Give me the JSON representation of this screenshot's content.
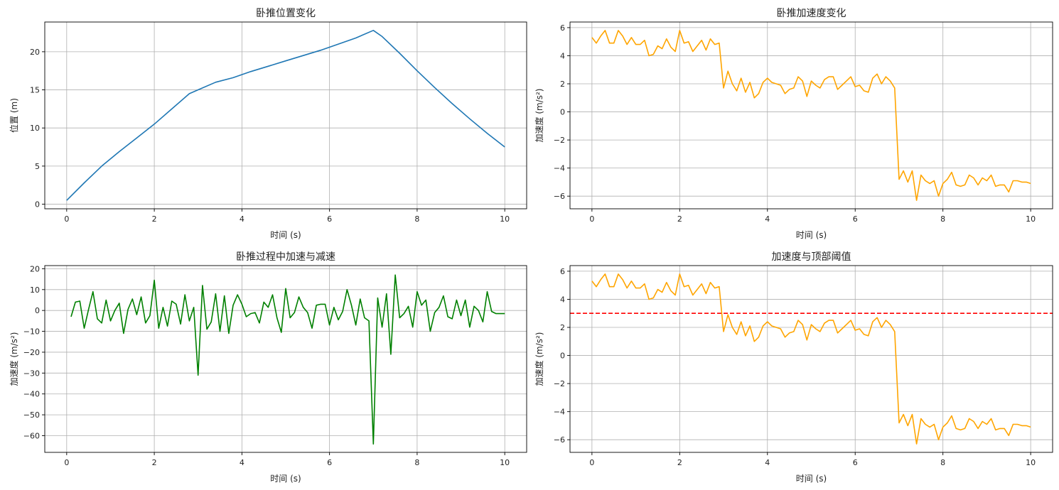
{
  "colors": {
    "position": "#1f77b4",
    "acceleration": "#ffa500",
    "accel_decel": "#008000",
    "threshold": "#ff0000",
    "grid": "#b0b0b0",
    "axes": "#000000"
  },
  "chart_data": [
    {
      "id": "position",
      "type": "line",
      "title": "卧推位置变化",
      "xlabel": "时间 (s)",
      "ylabel": "位置 (m)",
      "xlim": [
        -0.5,
        10.5
      ],
      "ylim": [
        -0.6,
        23.9
      ],
      "xticks": [
        0,
        2,
        4,
        6,
        8,
        10
      ],
      "yticks": [
        0,
        5,
        10,
        15,
        20
      ],
      "grid": true,
      "series": [
        {
          "color_key": "position",
          "x": [
            0,
            0.4,
            0.8,
            1.2,
            1.6,
            2.0,
            2.4,
            2.8,
            3.0,
            3.4,
            3.8,
            4.2,
            4.6,
            5.0,
            5.4,
            5.8,
            6.2,
            6.6,
            7.0,
            7.2,
            7.6,
            8.0,
            8.4,
            8.8,
            9.2,
            9.6,
            10.0
          ],
          "y": [
            0.5,
            2.8,
            5.0,
            6.9,
            8.7,
            10.5,
            12.5,
            14.5,
            15.0,
            16.0,
            16.6,
            17.4,
            18.1,
            18.8,
            19.5,
            20.2,
            21.0,
            21.8,
            22.8,
            22.0,
            19.8,
            17.5,
            15.3,
            13.2,
            11.2,
            9.3,
            7.5
          ]
        }
      ]
    },
    {
      "id": "acceleration",
      "type": "line",
      "title": "卧推加速度变化",
      "xlabel": "时间 (s)",
      "ylabel": "加速度 (m/s²)",
      "xlim": [
        -0.5,
        10.5
      ],
      "ylim": [
        -6.9,
        6.4
      ],
      "xticks": [
        0,
        2,
        4,
        6,
        8,
        10
      ],
      "yticks": [
        -6,
        -4,
        -2,
        0,
        2,
        4,
        6
      ],
      "grid": true,
      "series": [
        {
          "color_key": "acceleration",
          "x": [
            0,
            0.1,
            0.2,
            0.3,
            0.4,
            0.5,
            0.6,
            0.7,
            0.8,
            0.9,
            1.0,
            1.1,
            1.2,
            1.3,
            1.4,
            1.5,
            1.6,
            1.7,
            1.8,
            1.9,
            2.0,
            2.1,
            2.2,
            2.3,
            2.4,
            2.5,
            2.6,
            2.7,
            2.8,
            2.9,
            3.0,
            3.1,
            3.2,
            3.3,
            3.4,
            3.5,
            3.6,
            3.7,
            3.8,
            3.9,
            4.0,
            4.1,
            4.2,
            4.3,
            4.4,
            4.5,
            4.6,
            4.7,
            4.8,
            4.9,
            5.0,
            5.1,
            5.2,
            5.3,
            5.4,
            5.5,
            5.6,
            5.7,
            5.8,
            5.9,
            6.0,
            6.1,
            6.2,
            6.3,
            6.4,
            6.5,
            6.6,
            6.7,
            6.8,
            6.9,
            7.0,
            7.1,
            7.2,
            7.3,
            7.4,
            7.5,
            7.6,
            7.7,
            7.8,
            7.9,
            8.0,
            8.1,
            8.2,
            8.3,
            8.4,
            8.5,
            8.6,
            8.7,
            8.8,
            8.9,
            9.0,
            9.1,
            9.2,
            9.3,
            9.4,
            9.5,
            9.6,
            9.7,
            9.8,
            9.9,
            10.0
          ],
          "y": [
            5.3,
            4.9,
            5.4,
            5.8,
            4.9,
            4.9,
            5.8,
            5.4,
            4.8,
            5.3,
            4.8,
            4.8,
            5.1,
            4.0,
            4.1,
            4.7,
            4.5,
            5.2,
            4.6,
            4.3,
            5.8,
            4.9,
            5.0,
            4.3,
            4.7,
            5.1,
            4.4,
            5.2,
            4.8,
            4.9,
            1.7,
            2.9,
            2.0,
            1.5,
            2.4,
            1.4,
            2.1,
            1.0,
            1.3,
            2.1,
            2.4,
            2.1,
            2.0,
            1.9,
            1.3,
            1.6,
            1.7,
            2.5,
            2.2,
            1.1,
            2.2,
            1.9,
            1.7,
            2.3,
            2.5,
            2.5,
            1.6,
            1.9,
            2.2,
            2.5,
            1.8,
            1.9,
            1.5,
            1.4,
            2.4,
            2.7,
            2.0,
            2.5,
            2.2,
            1.7,
            -4.8,
            -4.2,
            -5.0,
            -4.2,
            -6.3,
            -4.5,
            -4.9,
            -5.1,
            -4.9,
            -6.0,
            -5.1,
            -4.8,
            -4.3,
            -5.2,
            -5.3,
            -5.2,
            -4.5,
            -4.7,
            -5.2,
            -4.7,
            -4.9,
            -4.5,
            -5.3,
            -5.2,
            -5.2,
            -5.7,
            -4.9,
            -4.9,
            -5.0,
            -5.0,
            -5.1
          ]
        }
      ]
    },
    {
      "id": "accel_decel",
      "type": "line",
      "title": "卧推过程中加速与减速",
      "xlabel": "时间 (s)",
      "ylabel": "加速度 (m/s²)",
      "xlim": [
        -0.5,
        10.5
      ],
      "ylim": [
        -68,
        21.5
      ],
      "xticks": [
        0,
        2,
        4,
        6,
        8,
        10
      ],
      "yticks": [
        -60,
        -50,
        -40,
        -30,
        -20,
        -10,
        0,
        10,
        20
      ],
      "grid": true,
      "series": [
        {
          "color_key": "accel_decel",
          "x": [
            0.1,
            0.2,
            0.3,
            0.4,
            0.5,
            0.6,
            0.7,
            0.8,
            0.9,
            1.0,
            1.1,
            1.2,
            1.3,
            1.4,
            1.5,
            1.6,
            1.7,
            1.8,
            1.9,
            2.0,
            2.1,
            2.2,
            2.3,
            2.4,
            2.5,
            2.6,
            2.7,
            2.8,
            2.9,
            3.0,
            3.1,
            3.2,
            3.3,
            3.4,
            3.5,
            3.6,
            3.7,
            3.8,
            3.9,
            4.0,
            4.1,
            4.2,
            4.3,
            4.4,
            4.5,
            4.6,
            4.7,
            4.8,
            4.9,
            5.0,
            5.1,
            5.2,
            5.3,
            5.4,
            5.5,
            5.6,
            5.7,
            5.8,
            5.9,
            6.0,
            6.1,
            6.2,
            6.3,
            6.4,
            6.5,
            6.6,
            6.7,
            6.8,
            6.9,
            7.0,
            7.1,
            7.2,
            7.3,
            7.4,
            7.5,
            7.6,
            7.7,
            7.8,
            7.9,
            8.0,
            8.1,
            8.2,
            8.3,
            8.4,
            8.5,
            8.6,
            8.7,
            8.8,
            8.9,
            9.0,
            9.1,
            9.2,
            9.3,
            9.4,
            9.5,
            9.6,
            9.7,
            9.8,
            9.9,
            10.0
          ],
          "y": [
            -3,
            4,
            4.5,
            -8.5,
            0.5,
            9,
            -4,
            -6,
            5,
            -5,
            0,
            3.5,
            -11,
            0.5,
            5.5,
            -2,
            6.5,
            -6,
            -2.5,
            14.5,
            -8.5,
            1.5,
            -7.5,
            4.5,
            3,
            -6.5,
            7.5,
            -5,
            1.5,
            -31,
            12,
            -9,
            -5.5,
            8,
            -10,
            7,
            -11,
            2.5,
            7.5,
            3,
            -3,
            -1.5,
            -1,
            -6,
            4,
            1.5,
            7.5,
            -3.5,
            -10.5,
            10.5,
            -3.5,
            -1,
            6.5,
            1.5,
            -1,
            -8.5,
            2.5,
            3,
            3,
            -7,
            1.5,
            -4.5,
            -0.5,
            10,
            2.5,
            -7,
            5.5,
            -3.5,
            -5,
            -64,
            6,
            -8,
            8,
            -21,
            17,
            -3.5,
            -1.5,
            2,
            -8,
            9,
            2.5,
            5,
            -10,
            -1,
            1.5,
            7,
            -3,
            -4,
            5,
            -2.5,
            5,
            -8,
            2,
            0,
            -5.5,
            9,
            -0.5,
            -1.5,
            -1.5,
            -1.5
          ]
        }
      ]
    },
    {
      "id": "threshold",
      "type": "line",
      "title": "加速度与顶部阈值",
      "xlabel": "时间 (s)",
      "ylabel": "加速度 (m/s²)",
      "xlim": [
        -0.5,
        10.5
      ],
      "ylim": [
        -6.9,
        6.4
      ],
      "xticks": [
        0,
        2,
        4,
        6,
        8,
        10
      ],
      "yticks": [
        -6,
        -4,
        -2,
        0,
        2,
        4,
        6
      ],
      "grid": true,
      "hline": {
        "y": 3,
        "color_key": "threshold",
        "style": "dashed"
      },
      "series": [
        {
          "color_key": "acceleration",
          "x": [
            0,
            0.1,
            0.2,
            0.3,
            0.4,
            0.5,
            0.6,
            0.7,
            0.8,
            0.9,
            1.0,
            1.1,
            1.2,
            1.3,
            1.4,
            1.5,
            1.6,
            1.7,
            1.8,
            1.9,
            2.0,
            2.1,
            2.2,
            2.3,
            2.4,
            2.5,
            2.6,
            2.7,
            2.8,
            2.9,
            3.0,
            3.1,
            3.2,
            3.3,
            3.4,
            3.5,
            3.6,
            3.7,
            3.8,
            3.9,
            4.0,
            4.1,
            4.2,
            4.3,
            4.4,
            4.5,
            4.6,
            4.7,
            4.8,
            4.9,
            5.0,
            5.1,
            5.2,
            5.3,
            5.4,
            5.5,
            5.6,
            5.7,
            5.8,
            5.9,
            6.0,
            6.1,
            6.2,
            6.3,
            6.4,
            6.5,
            6.6,
            6.7,
            6.8,
            6.9,
            7.0,
            7.1,
            7.2,
            7.3,
            7.4,
            7.5,
            7.6,
            7.7,
            7.8,
            7.9,
            8.0,
            8.1,
            8.2,
            8.3,
            8.4,
            8.5,
            8.6,
            8.7,
            8.8,
            8.9,
            9.0,
            9.1,
            9.2,
            9.3,
            9.4,
            9.5,
            9.6,
            9.7,
            9.8,
            9.9,
            10.0
          ],
          "y": [
            5.3,
            4.9,
            5.4,
            5.8,
            4.9,
            4.9,
            5.8,
            5.4,
            4.8,
            5.3,
            4.8,
            4.8,
            5.1,
            4.0,
            4.1,
            4.7,
            4.5,
            5.2,
            4.6,
            4.3,
            5.8,
            4.9,
            5.0,
            4.3,
            4.7,
            5.1,
            4.4,
            5.2,
            4.8,
            4.9,
            1.7,
            2.9,
            2.0,
            1.5,
            2.4,
            1.4,
            2.1,
            1.0,
            1.3,
            2.1,
            2.4,
            2.1,
            2.0,
            1.9,
            1.3,
            1.6,
            1.7,
            2.5,
            2.2,
            1.1,
            2.2,
            1.9,
            1.7,
            2.3,
            2.5,
            2.5,
            1.6,
            1.9,
            2.2,
            2.5,
            1.8,
            1.9,
            1.5,
            1.4,
            2.4,
            2.7,
            2.0,
            2.5,
            2.2,
            1.7,
            -4.8,
            -4.2,
            -5.0,
            -4.2,
            -6.3,
            -4.5,
            -4.9,
            -5.1,
            -4.9,
            -6.0,
            -5.1,
            -4.8,
            -4.3,
            -5.2,
            -5.3,
            -5.2,
            -4.5,
            -4.7,
            -5.2,
            -4.7,
            -4.9,
            -4.5,
            -5.3,
            -5.2,
            -5.2,
            -5.7,
            -4.9,
            -4.9,
            -5.0,
            -5.0,
            -5.1
          ]
        }
      ]
    }
  ]
}
